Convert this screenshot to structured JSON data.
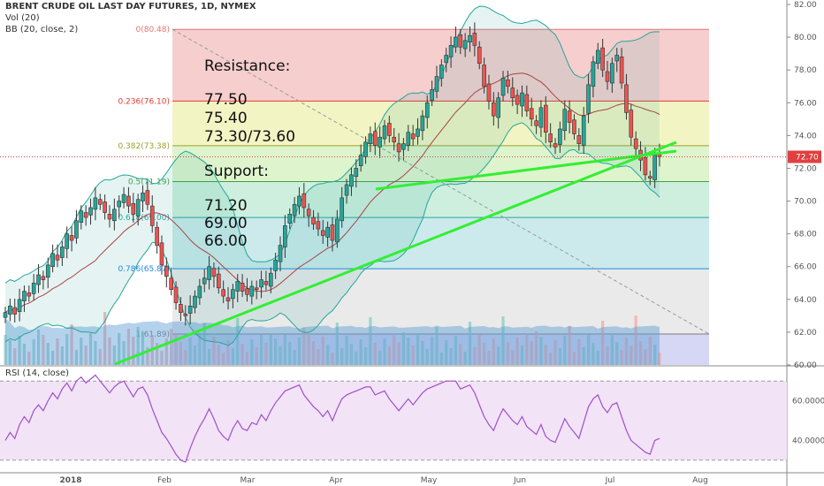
{
  "header": {
    "title": "BRENT CRUDE OIL LAST DAY FUTURES, 1D, NYMEX",
    "vol": "Vol (20)",
    "bb": "BB (20, close, 2)",
    "rsi": "RSI (14, close)"
  },
  "annotations": {
    "resistance_title": "Resistance:",
    "resistance_levels": [
      "77.50",
      "75.40",
      "73.30/73.60"
    ],
    "support_title": "Support:",
    "support_levels": [
      "71.20",
      "69.00",
      "66.00"
    ]
  },
  "colors": {
    "up": "#26a69a",
    "down": "#ef5350",
    "trendline": "#33ee33",
    "bb_band": "#26a69a",
    "bb_basis": "#a44",
    "rsi_line": "#a050c8",
    "rsi_bg": "#f2e3f7",
    "price_tag": "#e04040"
  },
  "chart_data": {
    "type": "candlestick",
    "price_axis": {
      "ticks": [
        "82.00",
        "80.00",
        "78.00",
        "76.00",
        "74.00",
        "72.00",
        "70.00",
        "68.00",
        "66.00",
        "64.00",
        "62.00",
        "60.00"
      ],
      "range": [
        60,
        82
      ]
    },
    "rsi_axis": {
      "ticks": [
        "60.0000",
        "40.0000"
      ],
      "range": [
        25,
        75
      ],
      "bands": [
        30,
        70
      ]
    },
    "time_axis": {
      "ticks": [
        "2018",
        "Feb",
        "Mar",
        "Apr",
        "May",
        "Jun",
        "Jul",
        "Aug"
      ]
    },
    "last_price": "72.70",
    "fib_levels": [
      {
        "label": "0(80.48)",
        "value": 80.48,
        "color": "#e57373"
      },
      {
        "label": "0.236(76.10)",
        "value": 76.1,
        "color": "#e53935"
      },
      {
        "label": "0.382(73.38)",
        "value": 73.38,
        "color": "#9aa12b"
      },
      {
        "label": "0.5(71.19)",
        "value": 71.19,
        "color": "#43a047"
      },
      {
        "label": "0.618(69.00)",
        "value": 69.0,
        "color": "#26a69a"
      },
      {
        "label": "0.786(65.87)",
        "value": 65.87,
        "color": "#1e88e5"
      },
      {
        "label": "1(61.89)",
        "value": 61.89,
        "color": "#7e7e7e"
      }
    ],
    "close": [
      63.2,
      63.6,
      63.1,
      64.0,
      64.5,
      64.2,
      65.0,
      65.5,
      65.2,
      66.1,
      66.8,
      66.4,
      67.2,
      68.0,
      67.6,
      68.8,
      69.4,
      69.0,
      69.6,
      70.2,
      69.8,
      69.3,
      68.9,
      69.5,
      70.0,
      70.4,
      69.7,
      69.2,
      70.1,
      70.5,
      69.8,
      68.5,
      67.3,
      66.1,
      65.4,
      64.6,
      63.8,
      63.2,
      63.0,
      63.6,
      64.2,
      64.8,
      65.3,
      66.0,
      65.4,
      64.7,
      64.2,
      63.9,
      64.6,
      65.1,
      64.5,
      64.3,
      64.8,
      64.6,
      65.2,
      64.9,
      65.6,
      66.4,
      67.3,
      68.5,
      69.2,
      69.8,
      70.3,
      69.6,
      69.1,
      68.6,
      68.3,
      67.9,
      68.4,
      67.6,
      68.9,
      70.2,
      71.0,
      71.6,
      72.0,
      72.8,
      73.6,
      74.1,
      73.4,
      73.9,
      74.6,
      74.0,
      73.6,
      73.0,
      73.5,
      74.2,
      73.8,
      74.4,
      75.2,
      76.0,
      76.8,
      77.6,
      78.3,
      78.9,
      79.5,
      80.0,
      79.4,
      79.8,
      80.1,
      79.5,
      78.4,
      77.0,
      76.1,
      75.2,
      76.3,
      77.5,
      77.0,
      76.3,
      75.9,
      76.6,
      75.5,
      75.0,
      74.6,
      75.7,
      74.2,
      73.6,
      73.3,
      74.4,
      75.6,
      74.8,
      74.1,
      73.5,
      75.2,
      77.1,
      78.5,
      79.2,
      78.0,
      77.3,
      78.4,
      78.9,
      77.2,
      75.4,
      73.9,
      73.2,
      72.5,
      71.6,
      71.4,
      72.8,
      72.7
    ],
    "rsi": [
      40,
      44,
      41,
      48,
      52,
      49,
      55,
      58,
      55,
      60,
      64,
      61,
      66,
      69,
      65,
      70,
      72,
      69,
      71,
      73,
      70,
      67,
      64,
      67,
      69,
      70,
      66,
      62,
      66,
      67,
      63,
      56,
      50,
      44,
      41,
      37,
      33,
      30,
      29,
      36,
      42,
      47,
      51,
      56,
      51,
      45,
      42,
      40,
      46,
      50,
      46,
      45,
      49,
      48,
      53,
      50,
      55,
      59,
      62,
      65,
      66,
      67,
      68,
      63,
      60,
      57,
      55,
      52,
      55,
      50,
      56,
      61,
      63,
      64,
      65,
      66,
      67,
      67,
      63,
      64,
      65,
      61,
      58,
      55,
      58,
      61,
      58,
      61,
      64,
      66,
      67,
      68,
      69,
      70,
      70,
      70,
      66,
      67,
      68,
      64,
      58,
      52,
      48,
      45,
      51,
      56,
      53,
      50,
      48,
      52,
      47,
      45,
      43,
      48,
      42,
      40,
      39,
      45,
      51,
      47,
      44,
      41,
      49,
      57,
      61,
      63,
      57,
      54,
      58,
      59,
      52,
      45,
      40,
      38,
      36,
      34,
      33,
      40,
      41
    ]
  }
}
